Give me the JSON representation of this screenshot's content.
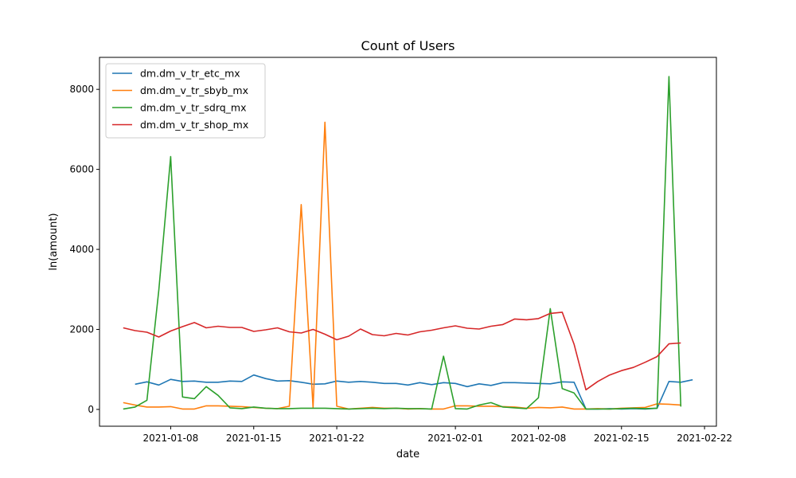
{
  "chart_data": {
    "type": "line",
    "title": "Count of Users",
    "xlabel": "date",
    "ylabel": "ln(amount)",
    "xlim": [
      "2021-01-02",
      "2021-02-23"
    ],
    "ylim": [
      -420,
      8800
    ],
    "x_ticks": [
      "2021-01-08",
      "2021-01-15",
      "2021-01-22",
      "2021-02-01",
      "2021-02-08",
      "2021-02-15",
      "2021-02-22"
    ],
    "y_ticks": [
      0,
      2000,
      4000,
      6000,
      8000
    ],
    "grid": false,
    "legend": "top-left",
    "series": [
      {
        "name": "dm.dm_v_tr_etc_mx",
        "color": "#1f77b4",
        "x": [
          "2021-01-05",
          "2021-01-06",
          "2021-01-07",
          "2021-01-08",
          "2021-01-09",
          "2021-01-10",
          "2021-01-11",
          "2021-01-12",
          "2021-01-13",
          "2021-01-14",
          "2021-01-15",
          "2021-01-16",
          "2021-01-17",
          "2021-01-18",
          "2021-01-19",
          "2021-01-20",
          "2021-01-21",
          "2021-01-22",
          "2021-01-23",
          "2021-01-24",
          "2021-01-25",
          "2021-01-26",
          "2021-01-27",
          "2021-01-28",
          "2021-01-29",
          "2021-01-30",
          "2021-01-31",
          "2021-02-01",
          "2021-02-02",
          "2021-02-03",
          "2021-02-04",
          "2021-02-05",
          "2021-02-06",
          "2021-02-07",
          "2021-02-08",
          "2021-02-09",
          "2021-02-10",
          "2021-02-11",
          "2021-02-12",
          "2021-02-13",
          "2021-02-14",
          "2021-02-15",
          "2021-02-16",
          "2021-02-17",
          "2021-02-18",
          "2021-02-19",
          "2021-02-20",
          "2021-02-21"
        ],
        "values": [
          630,
          690,
          610,
          750,
          700,
          710,
          680,
          680,
          710,
          700,
          860,
          770,
          710,
          720,
          680,
          630,
          640,
          710,
          680,
          700,
          680,
          650,
          650,
          610,
          670,
          620,
          670,
          650,
          570,
          640,
          600,
          670,
          670,
          660,
          650,
          640,
          690,
          680,
          10,
          10,
          20,
          10,
          20,
          10,
          30,
          700,
          680,
          740
        ]
      },
      {
        "name": "dm.dm_v_tr_sbyb_mx",
        "color": "#ff7f0e",
        "x": [
          "2021-01-04",
          "2021-01-05",
          "2021-01-06",
          "2021-01-07",
          "2021-01-08",
          "2021-01-09",
          "2021-01-10",
          "2021-01-11",
          "2021-01-12",
          "2021-01-13",
          "2021-01-14",
          "2021-01-15",
          "2021-01-16",
          "2021-01-17",
          "2021-01-18",
          "2021-01-19",
          "2021-01-20",
          "2021-01-21",
          "2021-01-22",
          "2021-01-23",
          "2021-01-24",
          "2021-01-25",
          "2021-01-26",
          "2021-01-27",
          "2021-01-28",
          "2021-01-29",
          "2021-01-30",
          "2021-01-31",
          "2021-02-01",
          "2021-02-02",
          "2021-02-03",
          "2021-02-04",
          "2021-02-05",
          "2021-02-06",
          "2021-02-07",
          "2021-02-08",
          "2021-02-09",
          "2021-02-10",
          "2021-02-11",
          "2021-02-12",
          "2021-02-13",
          "2021-02-14",
          "2021-02-15",
          "2021-02-16",
          "2021-02-17",
          "2021-02-18",
          "2021-02-19",
          "2021-02-20"
        ],
        "values": [
          170,
          110,
          60,
          60,
          70,
          10,
          10,
          90,
          90,
          80,
          70,
          50,
          30,
          20,
          80,
          5120,
          50,
          7180,
          80,
          10,
          30,
          50,
          30,
          30,
          10,
          20,
          10,
          10,
          90,
          90,
          80,
          80,
          70,
          60,
          30,
          50,
          40,
          60,
          10,
          10,
          20,
          10,
          30,
          40,
          50,
          140,
          130,
          110
        ]
      },
      {
        "name": "dm.dm_v_tr_sdrq_mx",
        "color": "#2ca02c",
        "x": [
          "2021-01-04",
          "2021-01-05",
          "2021-01-06",
          "2021-01-07",
          "2021-01-08",
          "2021-01-09",
          "2021-01-10",
          "2021-01-11",
          "2021-01-12",
          "2021-01-13",
          "2021-01-14",
          "2021-01-15",
          "2021-01-16",
          "2021-01-17",
          "2021-01-18",
          "2021-01-19",
          "2021-01-20",
          "2021-01-21",
          "2021-01-22",
          "2021-01-23",
          "2021-01-24",
          "2021-01-25",
          "2021-01-26",
          "2021-01-27",
          "2021-01-28",
          "2021-01-29",
          "2021-01-30",
          "2021-01-31",
          "2021-02-01",
          "2021-02-02",
          "2021-02-03",
          "2021-02-04",
          "2021-02-05",
          "2021-02-06",
          "2021-02-07",
          "2021-02-08",
          "2021-02-09",
          "2021-02-10",
          "2021-02-11",
          "2021-02-12",
          "2021-02-13",
          "2021-02-14",
          "2021-02-15",
          "2021-02-16",
          "2021-02-17",
          "2021-02-18",
          "2021-02-19",
          "2021-02-20"
        ],
        "values": [
          10,
          60,
          230,
          2980,
          6320,
          310,
          270,
          570,
          350,
          40,
          20,
          60,
          30,
          20,
          20,
          30,
          30,
          30,
          20,
          10,
          20,
          30,
          20,
          30,
          20,
          20,
          10,
          1330,
          20,
          10,
          110,
          170,
          60,
          40,
          20,
          290,
          2520,
          520,
          410,
          10,
          10,
          10,
          20,
          30,
          20,
          30,
          8320,
          70
        ]
      },
      {
        "name": "dm.dm_v_tr_shop_mx",
        "color": "#d62728",
        "x": [
          "2021-01-04",
          "2021-01-05",
          "2021-01-06",
          "2021-01-07",
          "2021-01-08",
          "2021-01-09",
          "2021-01-10",
          "2021-01-11",
          "2021-01-12",
          "2021-01-13",
          "2021-01-14",
          "2021-01-15",
          "2021-01-16",
          "2021-01-17",
          "2021-01-18",
          "2021-01-19",
          "2021-01-20",
          "2021-01-21",
          "2021-01-22",
          "2021-01-23",
          "2021-01-24",
          "2021-01-25",
          "2021-01-26",
          "2021-01-27",
          "2021-01-28",
          "2021-01-29",
          "2021-01-30",
          "2021-01-31",
          "2021-02-01",
          "2021-02-02",
          "2021-02-03",
          "2021-02-04",
          "2021-02-05",
          "2021-02-06",
          "2021-02-07",
          "2021-02-08",
          "2021-02-09",
          "2021-02-10",
          "2021-02-11",
          "2021-02-12",
          "2021-02-13",
          "2021-02-14",
          "2021-02-15",
          "2021-02-16",
          "2021-02-17",
          "2021-02-18",
          "2021-02-19",
          "2021-02-20"
        ],
        "values": [
          2040,
          1970,
          1930,
          1810,
          1960,
          2070,
          2170,
          2040,
          2080,
          2050,
          2050,
          1950,
          1990,
          2040,
          1940,
          1910,
          2000,
          1880,
          1740,
          1830,
          2010,
          1870,
          1840,
          1900,
          1860,
          1940,
          1980,
          2040,
          2090,
          2030,
          2010,
          2080,
          2120,
          2260,
          2240,
          2270,
          2400,
          2430,
          1630,
          490,
          700,
          860,
          970,
          1050,
          1180,
          1320,
          1640,
          1660
        ]
      }
    ]
  }
}
